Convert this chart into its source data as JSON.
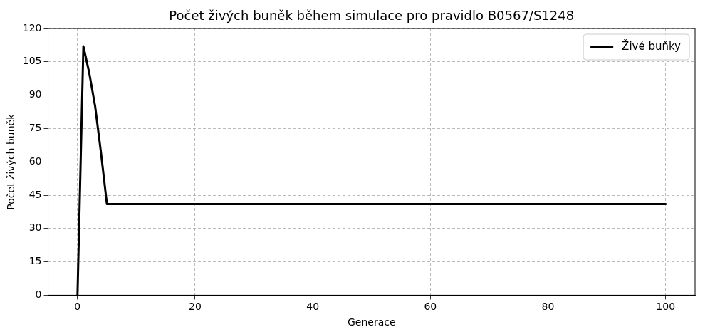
{
  "chart_data": {
    "type": "line",
    "title": "Počet živých buněk během simulace pro pravidlo B0567/S1248",
    "xlabel": "Generace",
    "ylabel": "Počet živých buněk",
    "xlim": [
      -5,
      105
    ],
    "xticks": [
      0,
      20,
      40,
      60,
      80,
      100
    ],
    "ylim": [
      0,
      120
    ],
    "yticks": [
      0,
      15,
      30,
      45,
      60,
      75,
      90,
      105,
      120
    ],
    "grid": true,
    "legend": "top right",
    "marker": "none",
    "line_style": "solid",
    "series": [
      {
        "name": "Živé buňky",
        "color": "#000000",
        "x": [
          0,
          1,
          2,
          3,
          4,
          5,
          6,
          7,
          8,
          9,
          10,
          11,
          12,
          13,
          14,
          15,
          16,
          17,
          18,
          19,
          20,
          21,
          22,
          23,
          24,
          25,
          26,
          27,
          28,
          29,
          30,
          31,
          32,
          33,
          34,
          35,
          36,
          37,
          38,
          39,
          40,
          41,
          42,
          43,
          44,
          45,
          46,
          47,
          48,
          49,
          50,
          51,
          52,
          53,
          54,
          55,
          56,
          57,
          58,
          59,
          60,
          61,
          62,
          63,
          64,
          65,
          66,
          67,
          68,
          69,
          70,
          71,
          72,
          73,
          74,
          75,
          76,
          77,
          78,
          79,
          80,
          81,
          82,
          83,
          84,
          85,
          86,
          87,
          88,
          89,
          90,
          91,
          92,
          93,
          94,
          95,
          96,
          97,
          98,
          99,
          100
        ],
        "values": [
          0,
          112,
          100,
          85,
          64,
          41,
          41,
          41,
          41,
          41,
          41,
          41,
          41,
          41,
          41,
          41,
          41,
          41,
          41,
          41,
          41,
          41,
          41,
          41,
          41,
          41,
          41,
          41,
          41,
          41,
          41,
          41,
          41,
          41,
          41,
          41,
          41,
          41,
          41,
          41,
          41,
          41,
          41,
          41,
          41,
          41,
          41,
          41,
          41,
          41,
          41,
          41,
          41,
          41,
          41,
          41,
          41,
          41,
          41,
          41,
          41,
          41,
          41,
          41,
          41,
          41,
          41,
          41,
          41,
          41,
          41,
          41,
          41,
          41,
          41,
          41,
          41,
          41,
          41,
          41,
          41,
          41,
          41,
          41,
          41,
          41,
          41,
          41,
          41,
          41,
          41,
          41,
          41,
          41,
          41,
          41,
          41,
          41,
          41,
          41,
          41
        ]
      }
    ]
  }
}
